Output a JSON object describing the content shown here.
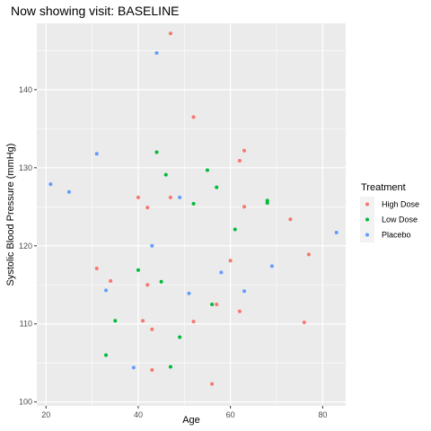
{
  "chart_data": {
    "type": "scatter",
    "title": "Now showing visit: BASELINE",
    "xlabel": "Age",
    "ylabel": "Systolic Blood Pressure (mmHg)",
    "xlim": [
      18,
      85
    ],
    "ylim": [
      99.5,
      148.5
    ],
    "x_ticks": [
      20,
      40,
      60,
      80
    ],
    "y_ticks": [
      100,
      110,
      120,
      130,
      140
    ],
    "grid": true,
    "legend": {
      "title": "Treatment",
      "position": "right"
    },
    "series": [
      {
        "name": "High Dose",
        "color": "#F8766D",
        "points": [
          {
            "x": 47,
            "y": 147.2
          },
          {
            "x": 52,
            "y": 136.5
          },
          {
            "x": 63,
            "y": 132.2
          },
          {
            "x": 62,
            "y": 130.9
          },
          {
            "x": 40,
            "y": 126.2
          },
          {
            "x": 47,
            "y": 126.2
          },
          {
            "x": 42,
            "y": 124.9
          },
          {
            "x": 63,
            "y": 125.0
          },
          {
            "x": 73,
            "y": 123.4
          },
          {
            "x": 77,
            "y": 118.9
          },
          {
            "x": 60,
            "y": 118.1
          },
          {
            "x": 31,
            "y": 117.1
          },
          {
            "x": 34,
            "y": 115.5
          },
          {
            "x": 42,
            "y": 115.0
          },
          {
            "x": 57,
            "y": 112.5
          },
          {
            "x": 62,
            "y": 111.6
          },
          {
            "x": 41,
            "y": 110.4
          },
          {
            "x": 52,
            "y": 110.3
          },
          {
            "x": 76,
            "y": 110.2
          },
          {
            "x": 43,
            "y": 109.3
          },
          {
            "x": 43,
            "y": 104.1
          },
          {
            "x": 56,
            "y": 102.3
          }
        ]
      },
      {
        "name": "Low Dose",
        "color": "#00BA38",
        "points": [
          {
            "x": 44,
            "y": 132.0
          },
          {
            "x": 55,
            "y": 129.7
          },
          {
            "x": 46,
            "y": 129.1
          },
          {
            "x": 57,
            "y": 127.5
          },
          {
            "x": 68,
            "y": 125.8
          },
          {
            "x": 68,
            "y": 125.5
          },
          {
            "x": 52,
            "y": 125.4
          },
          {
            "x": 61,
            "y": 122.1
          },
          {
            "x": 40,
            "y": 116.9
          },
          {
            "x": 45,
            "y": 115.4
          },
          {
            "x": 56,
            "y": 112.5
          },
          {
            "x": 35,
            "y": 110.4
          },
          {
            "x": 49,
            "y": 108.3
          },
          {
            "x": 33,
            "y": 106.0
          },
          {
            "x": 47,
            "y": 104.5
          }
        ]
      },
      {
        "name": "Placebo",
        "color": "#619CFF",
        "points": [
          {
            "x": 44,
            "y": 144.7
          },
          {
            "x": 31,
            "y": 131.8
          },
          {
            "x": 21,
            "y": 127.9
          },
          {
            "x": 25,
            "y": 126.9
          },
          {
            "x": 49,
            "y": 126.2
          },
          {
            "x": 83,
            "y": 121.7
          },
          {
            "x": 43,
            "y": 120.0
          },
          {
            "x": 69,
            "y": 117.4
          },
          {
            "x": 58,
            "y": 116.6
          },
          {
            "x": 33,
            "y": 114.3
          },
          {
            "x": 63,
            "y": 114.2
          },
          {
            "x": 51,
            "y": 113.9
          },
          {
            "x": 39,
            "y": 104.4
          }
        ]
      }
    ]
  }
}
